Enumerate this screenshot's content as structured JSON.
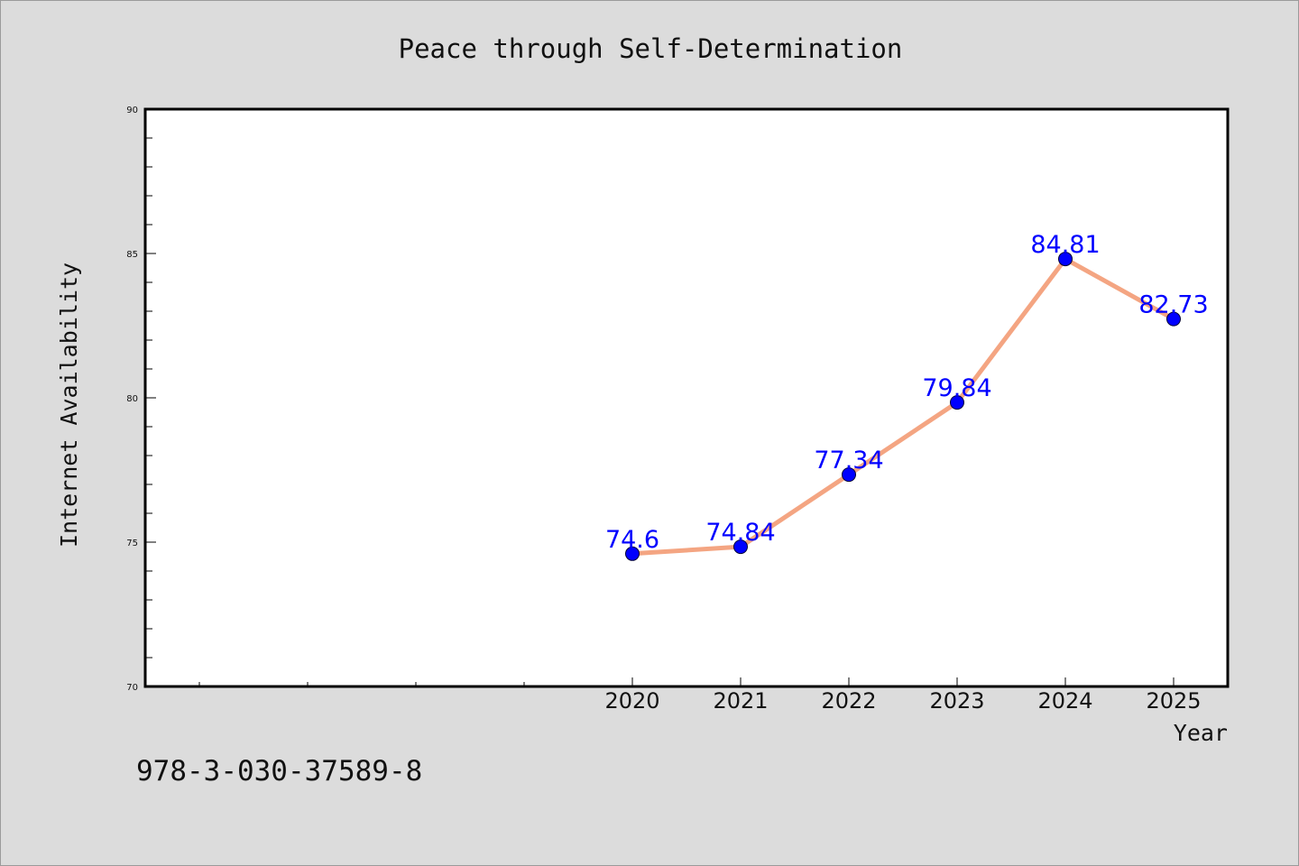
{
  "chart_data": {
    "type": "line",
    "title": "Peace through Self-Determination",
    "xlabel": "Year",
    "ylabel": "Internet Availability",
    "categories": [
      "2020",
      "2021",
      "2022",
      "2023",
      "2024",
      "2025"
    ],
    "series": [
      {
        "values": [
          74.6,
          74.84,
          77.34,
          79.84,
          84.81,
          82.73
        ],
        "data_labels": [
          "74.6",
          "74.84",
          "77.34",
          "79.84",
          "84.81",
          "82.73"
        ],
        "line_color": "#f4a582",
        "marker_color": "#0000ff"
      }
    ],
    "ylim": [
      70,
      90
    ],
    "yticks": [
      "70",
      "75",
      "80",
      "85",
      "90"
    ],
    "grid": false,
    "legend": "none",
    "footnote": "978-3-030-37589-8"
  }
}
